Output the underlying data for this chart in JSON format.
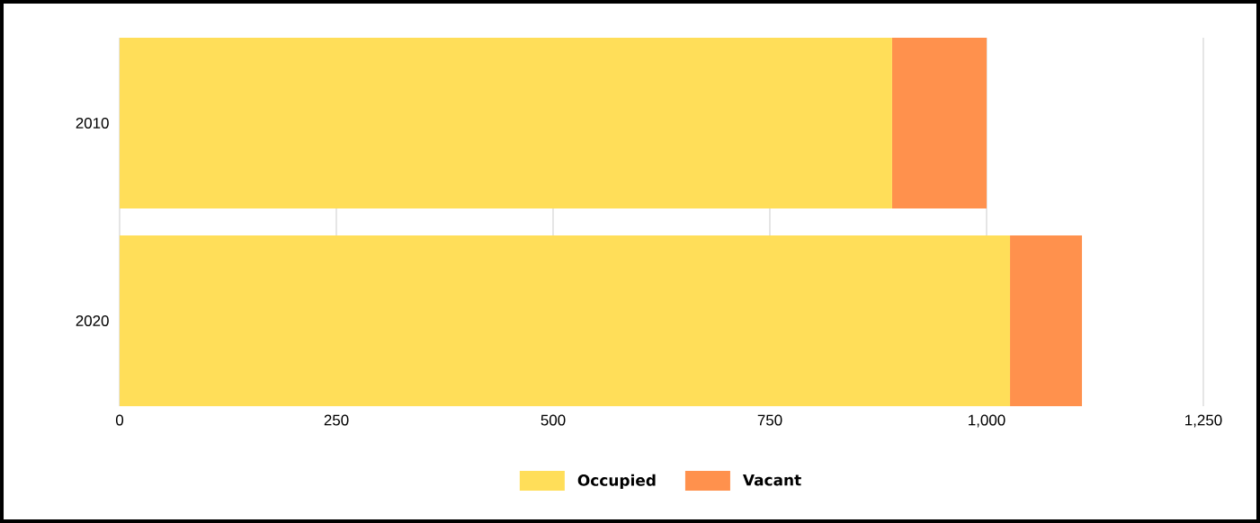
{
  "chart_data": {
    "type": "bar",
    "orientation": "horizontal",
    "stacked": true,
    "categories": [
      "2010",
      "2020"
    ],
    "series": [
      {
        "name": "Occupied",
        "color": "#ffde59",
        "values": [
          891,
          1027
        ]
      },
      {
        "name": "Vacant",
        "color": "#ff914d",
        "values": [
          109,
          83
        ]
      }
    ],
    "xlim": [
      0,
      1250
    ],
    "xticks": [
      0,
      250,
      500,
      750,
      {
        "value": 1000,
        "label": "1,000"
      },
      {
        "value": 1250,
        "label": "1,250"
      }
    ],
    "grid": "x",
    "legend": "bottom"
  }
}
